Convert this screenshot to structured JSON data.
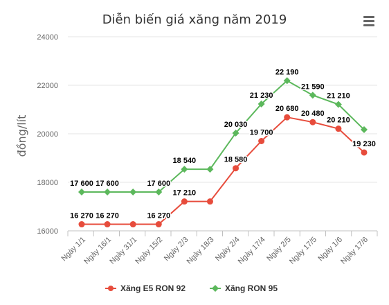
{
  "menu_icon": "hamburger-menu-icon",
  "chart_data": {
    "type": "line",
    "title": "Diễn biến giá xăng năm 2019",
    "xlabel": "",
    "ylabel": "đồng/lít",
    "ylim": [
      16000,
      24000
    ],
    "yticks": [
      "16000",
      "18000",
      "20000",
      "22000",
      "24000"
    ],
    "categories": [
      "Ngày 1/1",
      "Ngày 16/1",
      "Ngày 31/1",
      "Ngày 15/2",
      "Ngày 2/3",
      "Ngày 18/3",
      "Ngày 2/4",
      "Ngày 17/4",
      "Ngày 2/5",
      "Ngày 17/5",
      "Ngày 1/6",
      "Ngày 17/6"
    ],
    "grid": "horizontal",
    "legend_position": "bottom",
    "series": [
      {
        "name": "Xăng E5 RON 92",
        "color": "#e74c3c",
        "marker": "circle",
        "values": [
          16270,
          16270,
          16270,
          16270,
          17210,
          17210,
          18580,
          19700,
          20680,
          20480,
          20210,
          19230
        ],
        "labels": [
          "16 270",
          "16 270",
          "",
          "16 270",
          "17 210",
          "",
          "18 580",
          "19 700",
          "20 680",
          "20 480",
          "20 210",
          "19 230"
        ]
      },
      {
        "name": "Xăng RON 95",
        "color": "#5cb85c",
        "marker": "diamond",
        "values": [
          17600,
          17600,
          17600,
          17600,
          18540,
          18540,
          20030,
          21230,
          22190,
          21590,
          21210,
          20170
        ],
        "labels": [
          "17 600",
          "17 600",
          "",
          "17 600",
          "18 540",
          "",
          "20 030",
          "21 230",
          "22 190",
          "21 590",
          "21 210",
          ""
        ]
      }
    ]
  }
}
